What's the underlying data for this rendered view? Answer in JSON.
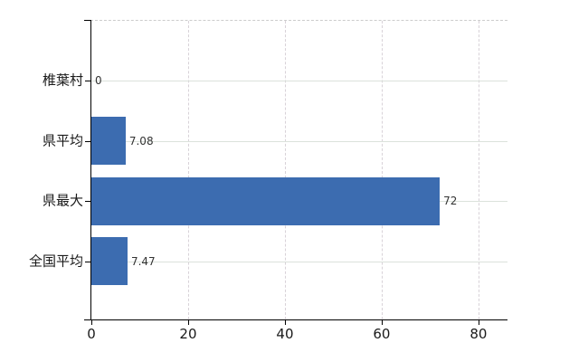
{
  "chart_data": {
    "type": "bar",
    "orientation": "horizontal",
    "title": "",
    "xlabel": "",
    "ylabel": "",
    "legend_position": "none",
    "categories": [
      "椎葉村",
      "県平均",
      "県最大",
      "全国平均"
    ],
    "values": [
      0,
      7.08,
      72,
      7.47
    ],
    "value_labels": [
      "0",
      "7.08",
      "72",
      "7.47"
    ],
    "x_tick_labels": [
      "0",
      "20",
      "40",
      "60",
      "80"
    ],
    "x_tick_values": [
      0,
      20,
      40,
      60,
      80
    ],
    "xlim": [
      0,
      86
    ],
    "grid": {
      "vertical": "dashed",
      "horizontal": "solid"
    }
  },
  "colors": {
    "bar": "#3c6cb0",
    "h_gridline": "#dbe2db",
    "v_gridline": "#d8d2d8",
    "plot_top_border": "#cccccc",
    "axis": "#000000",
    "tick_label": "#1a1a1a",
    "category_label": "#1a1a1a",
    "value_label": "#333333",
    "background": "#ffffff"
  }
}
